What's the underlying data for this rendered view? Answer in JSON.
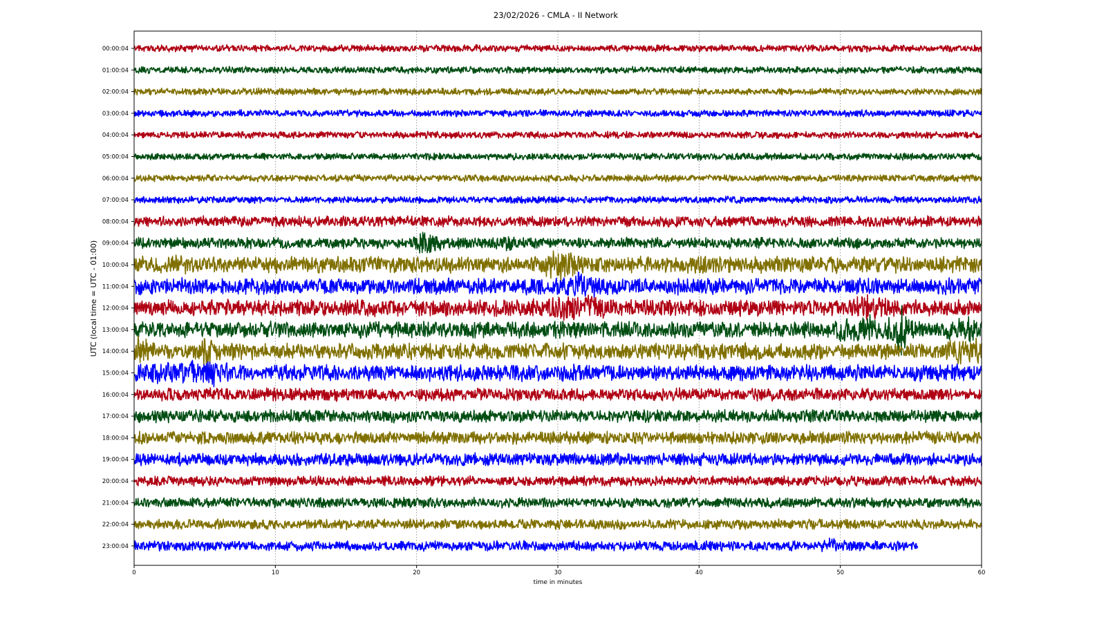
{
  "chart_data": {
    "type": "line",
    "title": "23/02/2026 - CMLA - II Network",
    "xlabel": "time in minutes",
    "ylabel": "UTC (local time = UTC - 01:00)",
    "xlim": [
      0,
      60
    ],
    "xticks": [
      0,
      10,
      20,
      30,
      40,
      50,
      60
    ],
    "grid": "x-only, dotted",
    "legend": "none",
    "colors": [
      "#b00013",
      "#004d12",
      "#807000",
      "#0000ff"
    ],
    "rows": [
      {
        "label": "00:00:04",
        "color": "#b00013",
        "end": 60
      },
      {
        "label": "01:00:04",
        "color": "#004d12",
        "end": 60
      },
      {
        "label": "02:00:04",
        "color": "#807000",
        "end": 60
      },
      {
        "label": "03:00:04",
        "color": "#0000ff",
        "end": 60
      },
      {
        "label": "04:00:04",
        "color": "#b00013",
        "end": 60
      },
      {
        "label": "05:00:04",
        "color": "#004d12",
        "end": 60
      },
      {
        "label": "06:00:04",
        "color": "#807000",
        "end": 60
      },
      {
        "label": "07:00:04",
        "color": "#0000ff",
        "end": 60
      },
      {
        "label": "08:00:04",
        "color": "#b00013",
        "end": 60
      },
      {
        "label": "09:00:04",
        "color": "#004d12",
        "end": 60
      },
      {
        "label": "10:00:04",
        "color": "#807000",
        "end": 60
      },
      {
        "label": "11:00:04",
        "color": "#0000ff",
        "end": 60
      },
      {
        "label": "12:00:04",
        "color": "#b00013",
        "end": 60
      },
      {
        "label": "13:00:04",
        "color": "#004d12",
        "end": 60
      },
      {
        "label": "14:00:04",
        "color": "#807000",
        "end": 60
      },
      {
        "label": "15:00:04",
        "color": "#0000ff",
        "end": 60
      },
      {
        "label": "16:00:04",
        "color": "#b00013",
        "end": 60
      },
      {
        "label": "17:00:04",
        "color": "#004d12",
        "end": 60
      },
      {
        "label": "18:00:04",
        "color": "#807000",
        "end": 60
      },
      {
        "label": "19:00:04",
        "color": "#0000ff",
        "end": 60
      },
      {
        "label": "20:00:04",
        "color": "#b00013",
        "end": 60
      },
      {
        "label": "21:00:04",
        "color": "#004d12",
        "end": 60
      },
      {
        "label": "22:00:04",
        "color": "#807000",
        "end": 60
      },
      {
        "label": "23:00:04",
        "color": "#0000ff",
        "end": 55.5
      }
    ]
  }
}
